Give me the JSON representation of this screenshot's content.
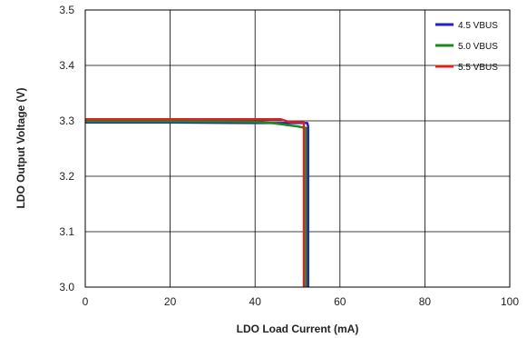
{
  "chart_data": {
    "type": "line",
    "title": "",
    "xlabel": "LDO Load Current (mA)",
    "ylabel": "LDO Output Voltage (V)",
    "xlim": [
      0,
      100
    ],
    "ylim": [
      3.0,
      3.5
    ],
    "xticks": [
      "0",
      "20",
      "40",
      "60",
      "80",
      "100"
    ],
    "yticks": [
      "3.0",
      "3.1",
      "3.2",
      "3.3",
      "3.4",
      "3.5"
    ],
    "grid": true,
    "legend_position": "top-right",
    "series": [
      {
        "name": "4.5 VBUS",
        "color": "#1f1fcf",
        "x": [
          0,
          20,
          40,
          50,
          52.3,
          52.5,
          52.5
        ],
        "y": [
          3.297,
          3.297,
          3.296,
          3.296,
          3.296,
          3.29,
          3.0
        ]
      },
      {
        "name": "5.0 VBUS",
        "color": "#1e8a1e",
        "x": [
          0,
          20,
          40,
          44,
          50,
          52,
          52,
          52
        ],
        "y": [
          3.299,
          3.299,
          3.298,
          3.296,
          3.29,
          3.287,
          3.28,
          3.0
        ]
      },
      {
        "name": "5.5 VBUS",
        "color": "#e02020",
        "x": [
          0,
          20,
          40,
          46,
          48,
          51.5,
          51.5,
          51.5
        ],
        "y": [
          3.303,
          3.303,
          3.303,
          3.303,
          3.298,
          3.297,
          3.29,
          3.0
        ]
      }
    ]
  }
}
